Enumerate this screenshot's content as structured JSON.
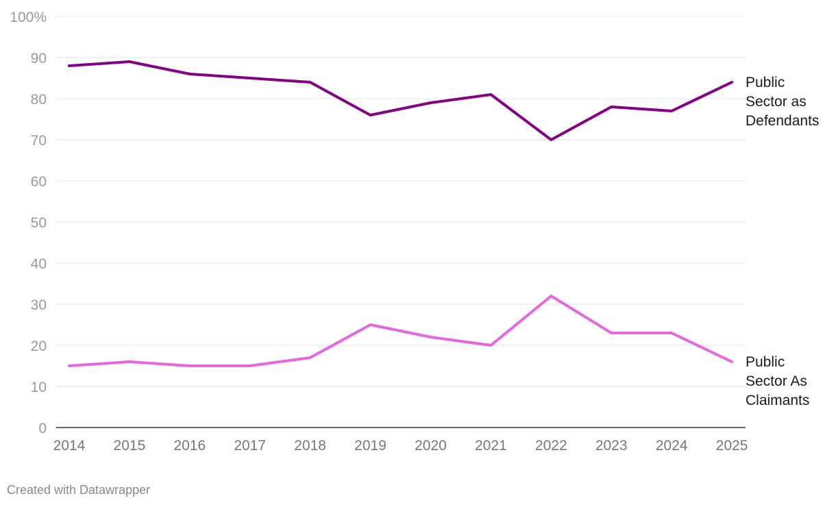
{
  "chart_data": {
    "type": "line",
    "title": "",
    "xlabel": "",
    "ylabel": "",
    "x": [
      "2014",
      "2015",
      "2016",
      "2017",
      "2018",
      "2019",
      "2020",
      "2021",
      "2022",
      "2023",
      "2024",
      "2025"
    ],
    "ylim": [
      0,
      100
    ],
    "yticks": [
      "0",
      "10",
      "20",
      "30",
      "40",
      "50",
      "60",
      "70",
      "80",
      "90",
      "100%"
    ],
    "grid": true,
    "series": [
      {
        "name": "Public Sector as Defendants",
        "label_lines": [
          "Public",
          "Sector as",
          "Defendants"
        ],
        "color": "#850085",
        "values": [
          88,
          89,
          86,
          85,
          84,
          76,
          79,
          81,
          70,
          78,
          77,
          84
        ]
      },
      {
        "name": "Public Sector As Claimants",
        "label_lines": [
          "Public",
          "Sector As",
          "Claimants"
        ],
        "color": "#e665e0",
        "values": [
          15,
          16,
          15,
          15,
          17,
          25,
          22,
          20,
          32,
          23,
          23,
          16
        ]
      }
    ]
  },
  "footer": {
    "credit": "Created with Datawrapper"
  }
}
